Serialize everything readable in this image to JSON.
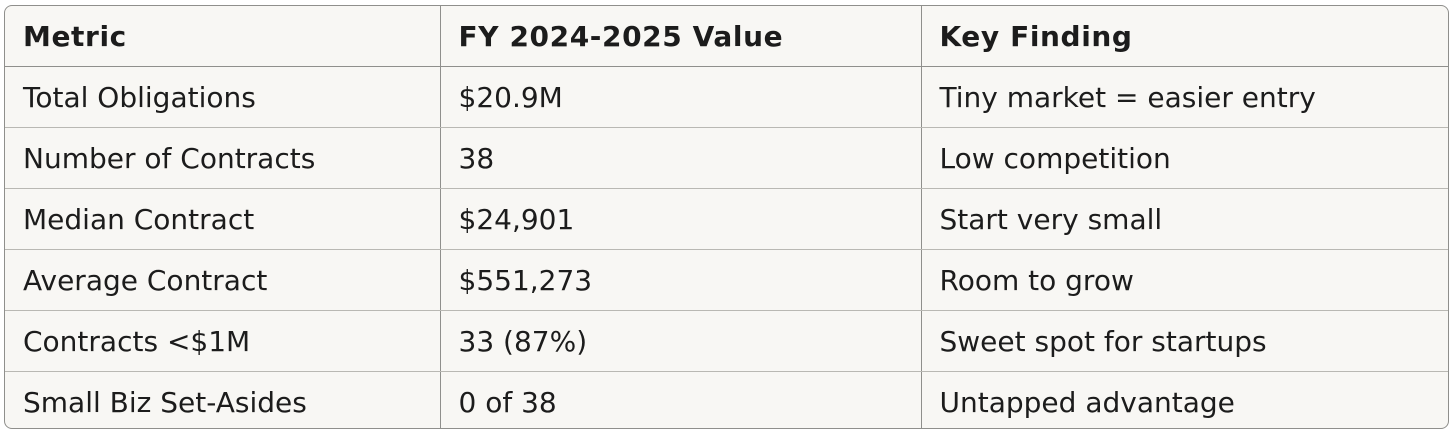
{
  "table": {
    "headers": [
      "Metric",
      "FY 2024-2025 Value",
      "Key Finding"
    ],
    "rows": [
      [
        "Total Obligations",
        "$20.9M",
        "Tiny market = easier entry"
      ],
      [
        "Number of Contracts",
        "38",
        "Low competition"
      ],
      [
        "Median Contract",
        "$24,901",
        "Start very small"
      ],
      [
        "Average Contract",
        "$551,273",
        "Room to grow"
      ],
      [
        "Contracts <$1M",
        "33 (87%)",
        "Sweet spot for startups"
      ],
      [
        "Small Biz Set-Asides",
        "0 of 38",
        "Untapped advantage"
      ]
    ]
  },
  "colors": {
    "background": "#f8f7f4",
    "border": "#8f8f8c",
    "text": "#1c1c1c"
  }
}
